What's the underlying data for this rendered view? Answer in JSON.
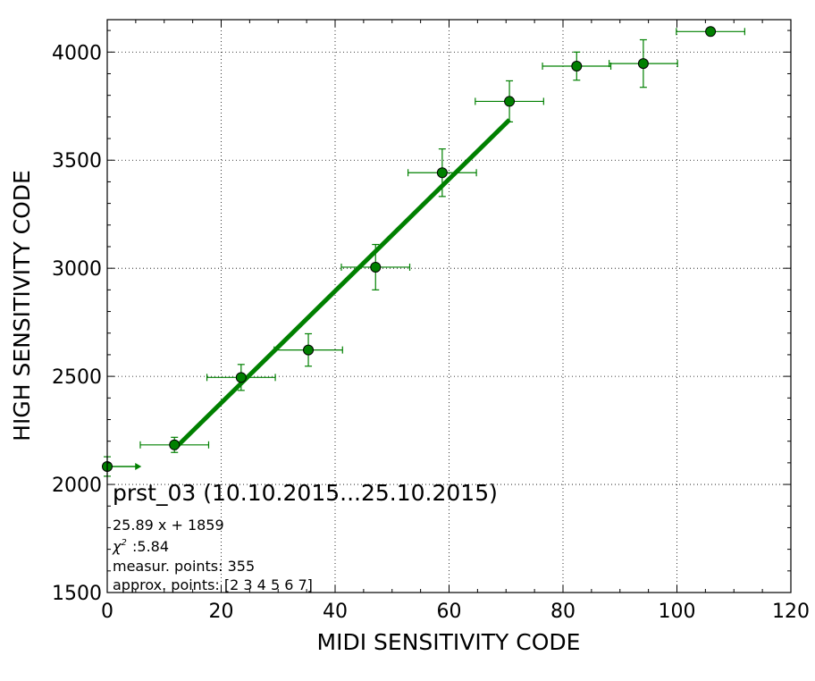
{
  "chart_data": {
    "type": "scatter",
    "title": "prst_03 (10.10.2015...25.10.2015)",
    "xlabel": "MIDI SENSITIVITY CODE",
    "ylabel": "HIGH SENSITIVITY CODE",
    "xlim": [
      0,
      120
    ],
    "ylim": [
      1500,
      4150
    ],
    "xticks": [
      0,
      20,
      40,
      60,
      80,
      100,
      120
    ],
    "yticks": [
      1500,
      2000,
      2500,
      3000,
      3500,
      4000
    ],
    "grid": true,
    "colors": {
      "series": "#008000",
      "marker": "#008000"
    },
    "points": [
      {
        "x": 0,
        "y": 2083,
        "xerr": 0,
        "yerr": 45,
        "right_arrow_to": 6
      },
      {
        "x": 11.8,
        "y": 2183,
        "xerr": 6,
        "yerr": 35
      },
      {
        "x": 23.5,
        "y": 2495,
        "xerr": 6,
        "yerr": 60
      },
      {
        "x": 35.3,
        "y": 2622,
        "xerr": 6,
        "yerr": 75
      },
      {
        "x": 47.1,
        "y": 3005,
        "xerr": 6,
        "yerr": 105
      },
      {
        "x": 58.8,
        "y": 3442,
        "xerr": 6,
        "yerr": 110
      },
      {
        "x": 70.6,
        "y": 3772,
        "xerr": 6,
        "yerr": 95
      },
      {
        "x": 82.4,
        "y": 3935,
        "xerr": 6,
        "yerr": 65
      },
      {
        "x": 94.1,
        "y": 3947,
        "xerr": 6,
        "yerr": 110
      },
      {
        "x": 105.9,
        "y": 4095,
        "xerr": 6,
        "yerr": 0
      }
    ],
    "fit": {
      "slope": 25.89,
      "intercept": 1859,
      "x_range": [
        11.8,
        70.6
      ]
    },
    "annotations": [
      "25.89 x + 1859",
      ":5.84",
      "measur. points: 355",
      "approx. points: [2 3 4 5 6 7]"
    ]
  }
}
